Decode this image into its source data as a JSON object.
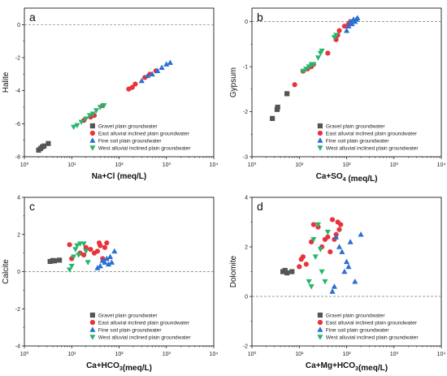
{
  "legend": [
    {
      "name": "Gravel plain groundwater",
      "color": "#555555",
      "marker": "square"
    },
    {
      "name": "East alluvial inclined plain groundwater",
      "color": "#e8333a",
      "marker": "circle"
    },
    {
      "name": "Fine soil plain groundwater",
      "color": "#2a6fd1",
      "marker": "triangle-up"
    },
    {
      "name": "West alluvial inclined plain groundwater",
      "color": "#27b56b",
      "marker": "triangle-down"
    }
  ],
  "chart_data": [
    {
      "panel": "a",
      "type": "scatter",
      "xlabel": "Na+Cl (meq/L)",
      "ylabel": "Halite",
      "xscale": "log",
      "xlim": [
        1,
        10000
      ],
      "ylim": [
        -8,
        1
      ],
      "xticks": [
        "10⁰",
        "10¹",
        "10²",
        "10³",
        "10⁴"
      ],
      "yticks": [
        -8,
        -6,
        -4,
        -2,
        0
      ],
      "reference_line_y": 0,
      "legend_position": "lower-right",
      "series": [
        {
          "name": "Gravel plain groundwater",
          "x": [
            2.0,
            2.2,
            2.4,
            2.6,
            3.2
          ],
          "y": [
            -7.6,
            -7.5,
            -7.4,
            -7.35,
            -7.2
          ]
        },
        {
          "name": "East alluvial inclined plain groundwater",
          "x": [
            18,
            25,
            30,
            45,
            160,
            190,
            220,
            350,
            450,
            600
          ],
          "y": [
            -5.8,
            -5.6,
            -5.5,
            -4.9,
            -3.9,
            -3.8,
            -3.6,
            -3.2,
            -3.0,
            -2.8
          ]
        },
        {
          "name": "Fine soil plain groundwater",
          "x": [
            300,
            400,
            500,
            650,
            800,
            1000,
            1200
          ],
          "y": [
            -3.4,
            -3.1,
            -3.0,
            -2.8,
            -2.6,
            -2.4,
            -2.3
          ]
        },
        {
          "name": "West alluvial inclined plain groundwater",
          "x": [
            11,
            13,
            16,
            20,
            24,
            28,
            33,
            40,
            48
          ],
          "y": [
            -6.2,
            -6.1,
            -5.9,
            -5.7,
            -5.5,
            -5.4,
            -5.2,
            -5.0,
            -4.9
          ]
        }
      ]
    },
    {
      "panel": "b",
      "type": "scatter",
      "xlabel": "Ca+SO4 (meq/L)",
      "ylabel": "Gypsum",
      "xscale": "log",
      "xlim": [
        1,
        10000
      ],
      "ylim": [
        -3,
        0.3
      ],
      "xticks": [
        "10⁰",
        "10¹",
        "10²",
        "10³",
        "10⁴"
      ],
      "yticks": [
        -3,
        -2,
        -1,
        0
      ],
      "reference_line_y": 0,
      "legend_position": "lower-right",
      "series": [
        {
          "name": "Gravel plain groundwater",
          "x": [
            2.7,
            3.4,
            3.5,
            5.5
          ],
          "y": [
            -2.15,
            -1.95,
            -1.9,
            -1.6
          ]
        },
        {
          "name": "East alluvial inclined plain groundwater",
          "x": [
            8,
            12,
            15,
            18,
            20,
            40,
            60,
            65,
            70,
            90,
            110,
            120
          ],
          "y": [
            -1.4,
            -1.1,
            -1.05,
            -1.0,
            -0.95,
            -0.7,
            -0.4,
            -0.3,
            -0.2,
            -0.1,
            -0.05,
            0.0
          ]
        },
        {
          "name": "Fine soil plain groundwater",
          "x": [
            100,
            110,
            120,
            130,
            140,
            150,
            160,
            170
          ],
          "y": [
            -0.2,
            -0.1,
            0.0,
            -0.05,
            0.05,
            0.0,
            0.05,
            0.08
          ]
        },
        {
          "name": "West alluvial inclined plain groundwater",
          "x": [
            12,
            14,
            16,
            18,
            20,
            25,
            28,
            30,
            55,
            60
          ],
          "y": [
            -1.1,
            -1.05,
            -1.0,
            -0.95,
            -0.95,
            -0.8,
            -0.7,
            -0.65,
            -0.35,
            -0.3
          ]
        }
      ]
    },
    {
      "panel": "c",
      "type": "scatter",
      "xlabel": "Ca+HCO3(meq/L)",
      "ylabel": "Calcite",
      "xscale": "log",
      "xlim": [
        1,
        10000
      ],
      "ylim": [
        -4,
        4
      ],
      "xticks": [
        "10⁰",
        "10¹",
        "10²",
        "10³",
        "10⁴"
      ],
      "yticks": [
        -4,
        -2,
        0,
        2,
        4
      ],
      "reference_line_y": 0,
      "legend_position": "lower-right",
      "series": [
        {
          "name": "Gravel plain groundwater",
          "x": [
            3.5,
            4,
            4.3,
            5.5
          ],
          "y": [
            0.55,
            0.6,
            0.58,
            0.62
          ]
        },
        {
          "name": "East alluvial inclined plain groundwater",
          "x": [
            9,
            10,
            15,
            18,
            20,
            25,
            30,
            35,
            38,
            40,
            45,
            50,
            55
          ],
          "y": [
            1.45,
            0.7,
            1.0,
            0.9,
            1.3,
            1.2,
            1.0,
            1.1,
            1.55,
            1.4,
            0.7,
            1.3,
            1.55
          ]
        },
        {
          "name": "Fine soil plain groundwater",
          "x": [
            35,
            40,
            45,
            50,
            55,
            60,
            65,
            70,
            80
          ],
          "y": [
            0.2,
            0.3,
            0.6,
            0.5,
            0.7,
            0.4,
            0.8,
            0.5,
            1.1
          ]
        },
        {
          "name": "West alluvial inclined plain groundwater",
          "x": [
            9,
            10,
            11,
            12,
            13,
            14,
            15,
            18,
            20,
            22
          ],
          "y": [
            0.1,
            0.3,
            0.8,
            1.2,
            1.4,
            0.9,
            1.5,
            1.5,
            1.1,
            0.5
          ]
        }
      ]
    },
    {
      "panel": "d",
      "type": "scatter",
      "xlabel": "Ca+Mg+HCO3(meq/L)",
      "ylabel": "Dolomite",
      "xscale": "log",
      "xlim": [
        1,
        10000
      ],
      "ylim": [
        -2,
        4
      ],
      "xticks": [
        "10⁰",
        "10¹",
        "10²",
        "10³",
        "10⁴"
      ],
      "yticks": [
        -2,
        0,
        2,
        4
      ],
      "reference_line_y": 0,
      "legend_position": "lower-right",
      "series": [
        {
          "name": "Gravel plain groundwater",
          "x": [
            4.5,
            5,
            5.5,
            7
          ],
          "y": [
            1.0,
            1.05,
            0.95,
            1.0
          ]
        },
        {
          "name": "East alluvial inclined plain groundwater",
          "x": [
            10,
            11,
            12,
            14,
            18,
            20,
            25,
            30,
            35,
            40,
            45,
            50,
            55,
            60,
            65,
            70,
            75
          ],
          "y": [
            1.2,
            1.5,
            1.6,
            1.3,
            2.2,
            2.9,
            2.8,
            2.0,
            2.3,
            2.4,
            1.8,
            3.1,
            2.3,
            2.5,
            3.0,
            2.7,
            2.9
          ]
        },
        {
          "name": "Fine soil plain groundwater",
          "x": [
            50,
            55,
            60,
            70,
            80,
            90,
            100,
            110,
            120,
            150,
            200
          ],
          "y": [
            0.2,
            0.4,
            2.4,
            2.0,
            1.8,
            1.0,
            1.4,
            1.2,
            2.2,
            0.6,
            2.5
          ]
        },
        {
          "name": "West alluvial inclined plain groundwater",
          "x": [
            16,
            18,
            20,
            22,
            25,
            28,
            30,
            35,
            40
          ],
          "y": [
            0.6,
            0.4,
            2.3,
            1.6,
            2.9,
            1.9,
            1.0,
            0.6,
            2.6
          ]
        }
      ]
    }
  ]
}
